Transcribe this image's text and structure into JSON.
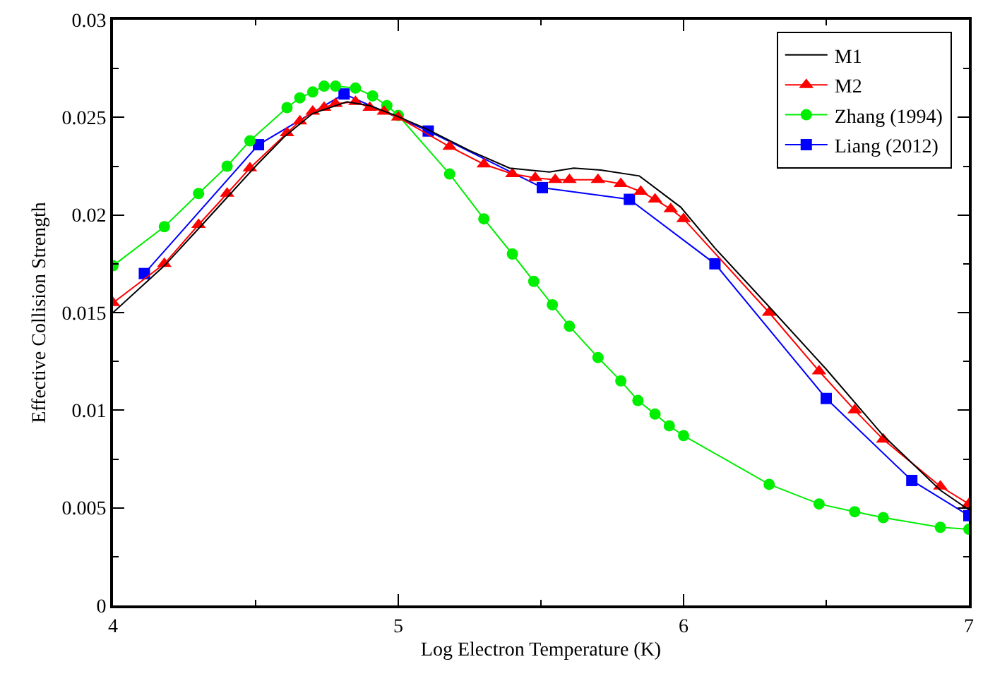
{
  "chart_data": {
    "type": "line",
    "xlabel": "Log Electron Temperature (K)",
    "ylabel": "Effective Collision Strength",
    "xlim": [
      4,
      7
    ],
    "xticks": [
      4,
      5,
      6,
      7
    ],
    "ylim": [
      0,
      0.03
    ],
    "yticks": [
      0,
      0.005,
      0.01,
      0.015,
      0.02,
      0.025,
      0.03
    ],
    "grid": false,
    "legend": "top right",
    "series": [
      {
        "name": "M1",
        "color": "#000000",
        "marker": "none",
        "x": [
          4.0,
          4.18,
          4.3,
          4.4,
          4.5,
          4.6,
          4.7,
          4.82,
          4.9,
          4.99,
          5.1,
          5.25,
          5.39,
          5.53,
          5.615,
          5.71,
          5.845,
          5.99,
          6.11,
          6.3,
          6.5,
          6.7,
          6.9,
          7.0
        ],
        "values": [
          0.015,
          0.0174,
          0.0193,
          0.0209,
          0.0225,
          0.024,
          0.0252,
          0.0258,
          0.0256,
          0.0251,
          0.0244,
          0.0233,
          0.0224,
          0.0222,
          0.0224,
          0.0223,
          0.022,
          0.0204,
          0.0183,
          0.0153,
          0.0121,
          0.0087,
          0.0059,
          0.0049
        ]
      },
      {
        "name": "M2",
        "color": "#ff0000",
        "marker": "triangle",
        "x": [
          4.0,
          4.18,
          4.3,
          4.4,
          4.48,
          4.61,
          4.655,
          4.7,
          4.74,
          4.78,
          4.85,
          4.9,
          4.95,
          5.0,
          5.18,
          5.3,
          5.4,
          5.48,
          5.55,
          5.6,
          5.7,
          5.78,
          5.85,
          5.9,
          5.955,
          6.0,
          6.3,
          6.475,
          6.6,
          6.7,
          6.9,
          7.0
        ],
        "values": [
          0.0155,
          0.0175,
          0.0195,
          0.0211,
          0.0224,
          0.0242,
          0.0248,
          0.0253,
          0.0255,
          0.0257,
          0.0258,
          0.0255,
          0.0253,
          0.025,
          0.0235,
          0.0226,
          0.0221,
          0.0219,
          0.0218,
          0.0218,
          0.0218,
          0.0216,
          0.0212,
          0.0208,
          0.0203,
          0.0198,
          0.015,
          0.012,
          0.01,
          0.0085,
          0.0061,
          0.0052
        ]
      },
      {
        "name": "Zhang (1994)",
        "color": "#00ee00",
        "marker": "circle",
        "x": [
          4.0,
          4.18,
          4.3,
          4.4,
          4.48,
          4.61,
          4.655,
          4.7,
          4.74,
          4.78,
          4.85,
          4.91,
          4.96,
          5.0,
          5.18,
          5.3,
          5.4,
          5.475,
          5.54,
          5.6,
          5.7,
          5.78,
          5.84,
          5.9,
          5.95,
          6.0,
          6.3,
          6.475,
          6.6,
          6.7,
          6.9,
          7.0
        ],
        "values": [
          0.0174,
          0.0194,
          0.0211,
          0.0225,
          0.0238,
          0.0255,
          0.026,
          0.0263,
          0.0266,
          0.0266,
          0.0265,
          0.0261,
          0.0256,
          0.0251,
          0.0221,
          0.0198,
          0.018,
          0.0166,
          0.0154,
          0.0143,
          0.0127,
          0.0115,
          0.0105,
          0.0098,
          0.0092,
          0.0087,
          0.0062,
          0.0052,
          0.0048,
          0.0045,
          0.004,
          0.0039
        ]
      },
      {
        "name": "Liang (2012)",
        "color": "#0000ff",
        "marker": "square",
        "x": [
          4.11,
          4.51,
          4.81,
          5.105,
          5.505,
          5.81,
          6.11,
          6.5,
          6.8,
          7.0
        ],
        "values": [
          0.017,
          0.0236,
          0.0262,
          0.0243,
          0.0214,
          0.0208,
          0.0175,
          0.0106,
          0.0064,
          0.0046
        ]
      }
    ]
  }
}
